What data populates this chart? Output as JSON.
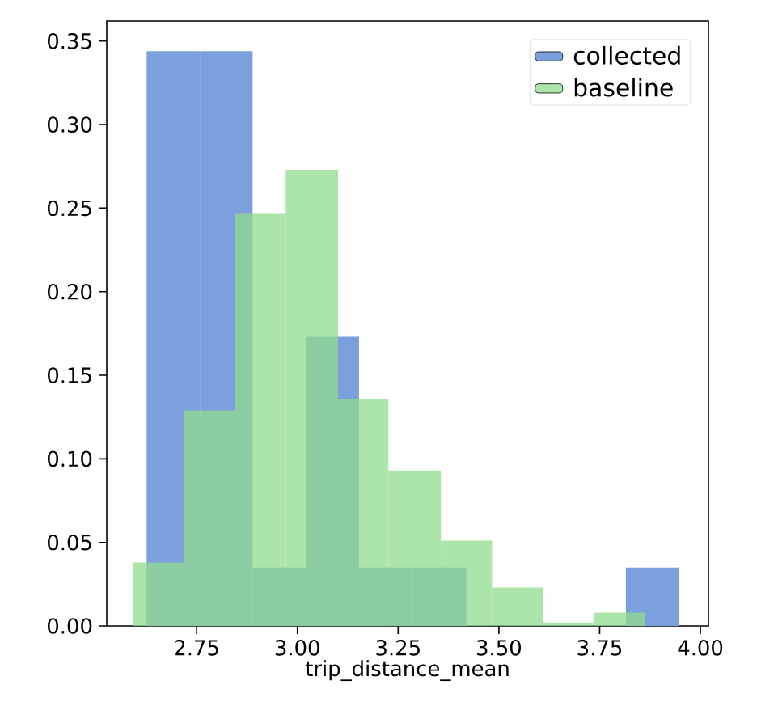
{
  "chart_data": {
    "type": "histogram",
    "xlabel": "trip_distance_mean",
    "legend": "top right",
    "grid": false,
    "xlim": [
      2.527,
      4.02
    ],
    "bins": [
      2.626,
      2.758,
      2.889,
      3.021,
      3.153,
      3.287,
      3.419,
      3.815,
      3.946
    ],
    "ylim": [
      0,
      0.362
    ],
    "xticks": [
      {
        "value": 2.75,
        "label": "2.75"
      },
      {
        "value": 3.0,
        "label": "3.00"
      },
      {
        "value": 3.25,
        "label": "3.25"
      },
      {
        "value": 3.5,
        "label": "3.50"
      },
      {
        "value": 3.75,
        "label": "3.75"
      },
      {
        "value": 4.0,
        "label": "4.00"
      }
    ],
    "yticks": [
      {
        "value": 0,
        "label": "0.00"
      },
      {
        "value": 0.05,
        "label": "0.05"
      },
      {
        "value": 0.1,
        "label": "0.10"
      },
      {
        "value": 0.15,
        "label": "0.15"
      },
      {
        "value": 0.2,
        "label": "0.20"
      },
      {
        "value": 0.25,
        "label": "0.25"
      },
      {
        "value": 0.3,
        "label": "0.30"
      },
      {
        "value": 0.35,
        "label": "0.35"
      }
    ],
    "series": [
      {
        "name": "collected",
        "color": "#7ba0dd",
        "values": [
          0.344,
          0.344,
          0.035,
          0.173,
          0.035,
          0.035,
          0,
          0.035
        ]
      },
      {
        "name": "baseline",
        "color": "#90dc8c",
        "bins": [
          2.592,
          2.72,
          2.846,
          2.971,
          3.101,
          3.226,
          3.356,
          3.483,
          3.609,
          3.737,
          3.863
        ],
        "values": [
          0.038,
          0.129,
          0.247,
          0.273,
          0.136,
          0.093,
          0.051,
          0.023,
          0.002,
          0.008
        ]
      }
    ]
  }
}
